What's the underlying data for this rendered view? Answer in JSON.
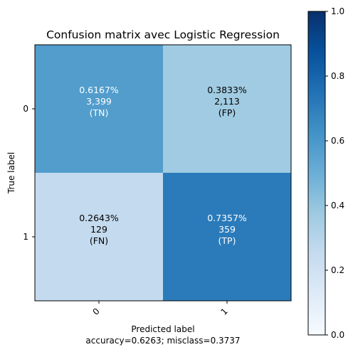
{
  "chart_data": {
    "type": "heatmap",
    "title": "Confusion matrix avec Logistic Regression",
    "xlabel": "Predicted label",
    "xlabel_sub": "accuracy=0.6263; misclass=0.3737",
    "ylabel": "True label",
    "x_categories": [
      "0",
      "1"
    ],
    "y_categories": [
      "0",
      "1"
    ],
    "cells": [
      [
        {
          "value": 0.6167,
          "pct": "0.6167%",
          "count": "3,399",
          "tag": "(TN)",
          "color": "#529dcc",
          "text_color": "#ffffff"
        },
        {
          "value": 0.3833,
          "pct": "0.3833%",
          "count": "2,113",
          "tag": "(FP)",
          "color": "#a0cbe2",
          "text_color": "#000000"
        }
      ],
      [
        {
          "value": 0.2643,
          "pct": "0.2643%",
          "count": "129",
          "tag": "(FN)",
          "color": "#c4daee",
          "text_color": "#000000"
        },
        {
          "value": 0.7357,
          "pct": "0.7357%",
          "count": "359",
          "tag": "(TP)",
          "color": "#2b7bba",
          "text_color": "#ffffff"
        }
      ]
    ],
    "colorbar": {
      "colormap": "Blues",
      "range": [
        0.0,
        1.0
      ],
      "ticks": [
        "0.0",
        "0.2",
        "0.4",
        "0.6",
        "0.8",
        "1.0"
      ],
      "tick_values": [
        0.0,
        0.2,
        0.4,
        0.6,
        0.8,
        1.0
      ],
      "color_low": "#f7fbff",
      "color_mid": "#6baed6",
      "color_high": "#08306b"
    }
  }
}
